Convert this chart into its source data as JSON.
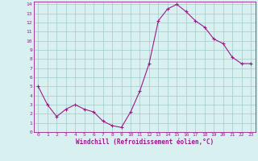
{
  "hours": [
    0,
    1,
    2,
    3,
    4,
    5,
    6,
    7,
    8,
    9,
    10,
    11,
    12,
    13,
    14,
    15,
    16,
    17,
    18,
    19,
    20,
    21,
    22,
    23
  ],
  "values": [
    5.0,
    3.0,
    1.7,
    2.5,
    3.0,
    2.5,
    2.2,
    1.2,
    0.7,
    0.5,
    2.2,
    4.5,
    7.5,
    12.2,
    13.5,
    14.0,
    13.2,
    12.2,
    11.5,
    10.2,
    9.7,
    8.2,
    7.5,
    7.5
  ],
  "line_color": "#9b1a8a",
  "marker": "+",
  "bg_color": "#d8f0f0",
  "grid_color": "#a0c8c8",
  "xlabel": "Windchill (Refroidissement éolien,°C)",
  "xlabel_color": "#9b1a8a",
  "tick_color": "#9b1a8a",
  "spine_color": "#9b1a8a",
  "ylim": [
    0,
    14
  ],
  "xlim": [
    -0.5,
    23.5
  ],
  "yticks": [
    0,
    1,
    2,
    3,
    4,
    5,
    6,
    7,
    8,
    9,
    10,
    11,
    12,
    13,
    14
  ],
  "xticks": [
    0,
    1,
    2,
    3,
    4,
    5,
    6,
    7,
    8,
    9,
    10,
    11,
    12,
    13,
    14,
    15,
    16,
    17,
    18,
    19,
    20,
    21,
    22,
    23
  ]
}
